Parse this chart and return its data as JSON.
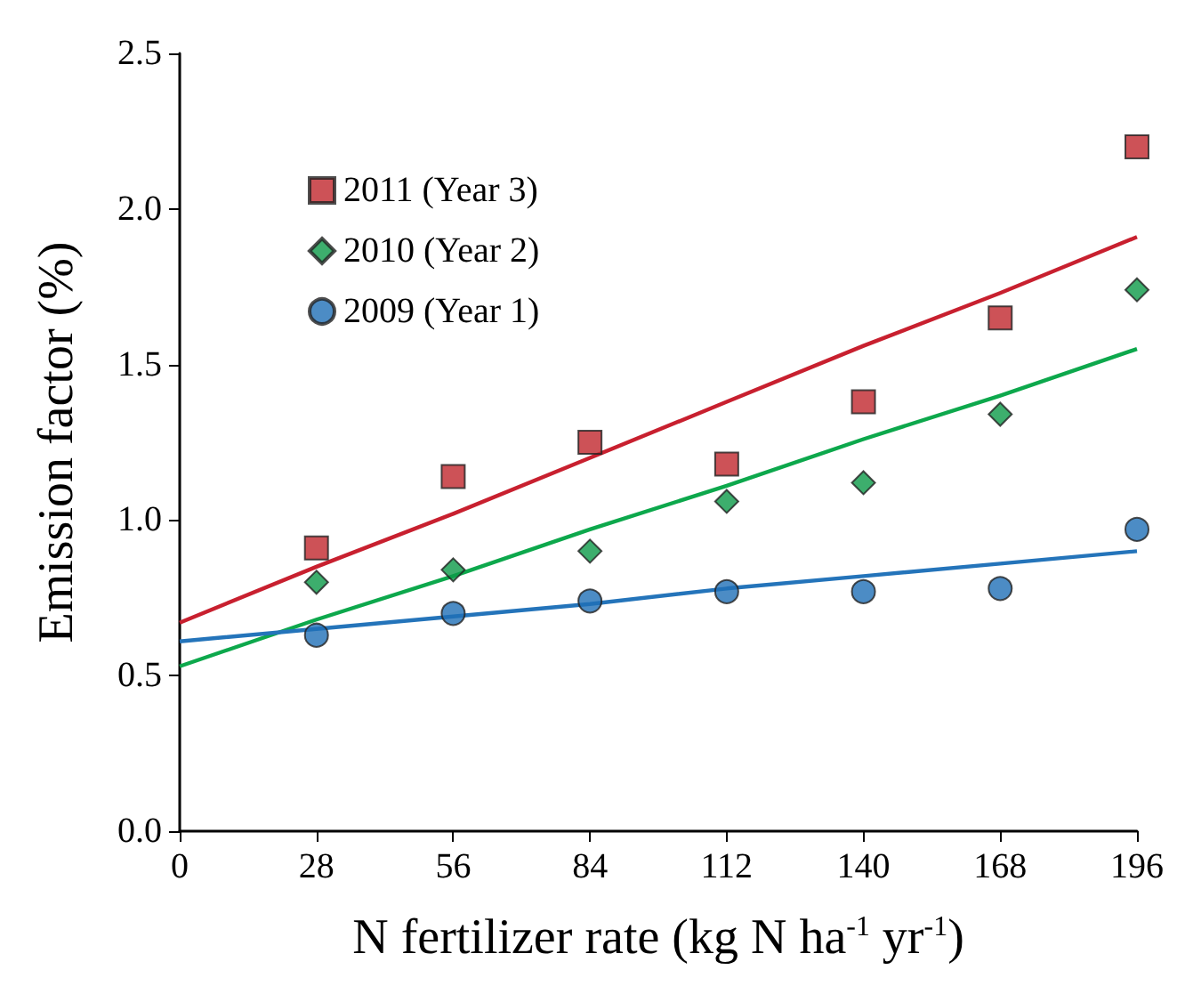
{
  "chart_data": {
    "type": "scatter",
    "xlabel": "N fertilizer rate (kg N ha$^{-1}$ yr$^{-1}$)",
    "ylabel": "Emission factor (%)",
    "x": [
      0,
      28,
      56,
      84,
      112,
      140,
      168,
      196
    ],
    "series": [
      {
        "name": "2011 (Year 3)",
        "color": "#c1272d",
        "marker": "square",
        "values": [
          null,
          0.91,
          1.14,
          1.25,
          1.18,
          1.38,
          1.65,
          2.2
        ]
      },
      {
        "name": "2010 (Year 2)",
        "color": "#0c9a48",
        "marker": "diamond",
        "values": [
          null,
          0.8,
          0.84,
          0.9,
          1.06,
          1.12,
          1.34,
          1.74
        ]
      },
      {
        "name": "2009 (Year 1)",
        "color": "#1f6fb6",
        "marker": "circle",
        "values": [
          null,
          0.63,
          0.7,
          0.74,
          0.77,
          0.77,
          0.78,
          0.97
        ]
      },
      {
        "type": "line",
        "color": "#c8202f",
        "marker": "none",
        "values": [
          0.67,
          0.85,
          1.02,
          1.2,
          1.38,
          1.56,
          1.73,
          1.91
        ]
      },
      {
        "type": "line",
        "color": "#0da84c",
        "marker": "none",
        "values": [
          0.53,
          0.68,
          0.82,
          0.97,
          1.11,
          1.26,
          1.4,
          1.55
        ]
      },
      {
        "type": "line",
        "color": "#2474ba",
        "marker": "none",
        "values": [
          0.61,
          0.65,
          0.69,
          0.73,
          0.78,
          0.82,
          0.86,
          0.9
        ]
      }
    ],
    "xlim": [
      0,
      196
    ],
    "xticks": [
      0,
      28,
      56,
      84,
      112,
      140,
      168,
      196
    ],
    "ylim": [
      0,
      2.5
    ],
    "yticks": [
      {
        "value": 0,
        "label": "0.0"
      },
      {
        "value": 0.5,
        "label": "0.5"
      },
      {
        "value": 1,
        "label": "1.0"
      },
      {
        "value": 1.5,
        "label": "1.5"
      },
      {
        "value": 2,
        "label": "2.0"
      },
      {
        "value": 2.5,
        "label": "2.5"
      }
    ],
    "grid": false,
    "legend": "top left"
  }
}
